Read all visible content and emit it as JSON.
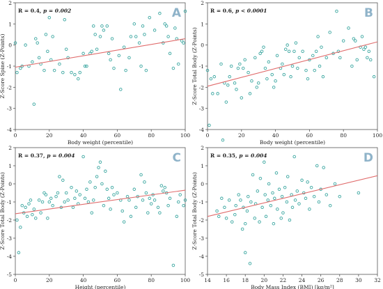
{
  "colors": {
    "points": "#3aa6a0",
    "trend": "#e06b6b",
    "panel_letter": "#8fb3c9",
    "axis": "#555555"
  },
  "chart_data": [
    {
      "type": "scatter",
      "panel_letter": "A",
      "stat_label": "R = 0.4, ",
      "p_label": "p = 0.002",
      "xlabel": "Body weight (percentile)",
      "ylabel": "Z-Score Spine (Z-Points)",
      "xlim": [
        0,
        100
      ],
      "ylim": [
        -4,
        2
      ],
      "xticks": [
        0,
        20,
        40,
        60,
        80,
        100
      ],
      "yticks": [
        2,
        1,
        0,
        -1,
        -2,
        -3,
        -4
      ],
      "trend": [
        [
          0,
          -1.05
        ],
        [
          100,
          0.3
        ]
      ],
      "points": [
        [
          0,
          0.1
        ],
        [
          1,
          -1.3
        ],
        [
          3,
          -1.1
        ],
        [
          4,
          -1.0
        ],
        [
          6,
          0.0
        ],
        [
          8,
          -1.0
        ],
        [
          10,
          -0.8
        ],
        [
          11,
          -2.8
        ],
        [
          12,
          0.3
        ],
        [
          13,
          0.1
        ],
        [
          14,
          -0.6
        ],
        [
          15,
          -0.9
        ],
        [
          17,
          -1.2
        ],
        [
          18,
          0.5
        ],
        [
          19,
          -0.3
        ],
        [
          20,
          1.3
        ],
        [
          21,
          -0.7
        ],
        [
          22,
          0.4
        ],
        [
          23,
          -1.2
        ],
        [
          26,
          -0.9
        ],
        [
          28,
          -1.3
        ],
        [
          29,
          1.2
        ],
        [
          30,
          -0.2
        ],
        [
          31,
          -0.6
        ],
        [
          33,
          -1.3
        ],
        [
          35,
          -1.4
        ],
        [
          37,
          -1.6
        ],
        [
          38,
          -1.3
        ],
        [
          40,
          -0.4
        ],
        [
          41,
          -1.0
        ],
        [
          42,
          -1.0
        ],
        [
          44,
          -0.4
        ],
        [
          45,
          -0.3
        ],
        [
          46,
          0.9
        ],
        [
          47,
          0.5
        ],
        [
          48,
          -0.2
        ],
        [
          50,
          0.4
        ],
        [
          51,
          0.9
        ],
        [
          52,
          0.7
        ],
        [
          54,
          0.9
        ],
        [
          55,
          -0.4
        ],
        [
          56,
          -0.7
        ],
        [
          57,
          0.3
        ],
        [
          58,
          -1.1
        ],
        [
          61,
          -0.5
        ],
        [
          62,
          -2.1
        ],
        [
          64,
          -0.1
        ],
        [
          65,
          -1.2
        ],
        [
          67,
          -0.6
        ],
        [
          68,
          0.4
        ],
        [
          70,
          1.0
        ],
        [
          71,
          0.4
        ],
        [
          73,
          0.1
        ],
        [
          74,
          -1.0
        ],
        [
          75,
          0.9
        ],
        [
          76,
          0.5
        ],
        [
          77,
          -1.2
        ],
        [
          79,
          1.3
        ],
        [
          82,
          0.7
        ],
        [
          85,
          1.5
        ],
        [
          86,
          2.3
        ],
        [
          87,
          0.1
        ],
        [
          88,
          1.0
        ],
        [
          89,
          0.9
        ],
        [
          90,
          0.4
        ],
        [
          91,
          -0.4
        ],
        [
          93,
          -1.1
        ],
        [
          94,
          0.8
        ],
        [
          95,
          0.3
        ],
        [
          96,
          -0.9
        ],
        [
          98,
          0.2
        ],
        [
          99,
          0.1
        ],
        [
          100,
          1.6
        ]
      ]
    },
    {
      "type": "scatter",
      "panel_letter": "B",
      "stat_label": "R = 0.6, ",
      "p_label": "p < 0.0001",
      "xlabel": "Body weight (percentile)",
      "ylabel": "Z-Score Total Body (Z-Points)",
      "xlim": [
        0,
        100
      ],
      "ylim": [
        -4,
        2
      ],
      "xticks": [
        0,
        20,
        40,
        60,
        80,
        100
      ],
      "yticks": [
        2,
        1,
        0,
        -1,
        -2,
        -3,
        -4
      ],
      "trend": [
        [
          0,
          -1.95
        ],
        [
          100,
          0.15
        ]
      ],
      "points": [
        [
          0,
          -1.2
        ],
        [
          1,
          -3.8
        ],
        [
          2,
          -1.6
        ],
        [
          3,
          -2.3
        ],
        [
          4,
          -1.5
        ],
        [
          6,
          -2.3
        ],
        [
          8,
          -0.9
        ],
        [
          9,
          -4.5
        ],
        [
          10,
          -1.8
        ],
        [
          11,
          -2.7
        ],
        [
          12,
          -1.9
        ],
        [
          13,
          -1.5
        ],
        [
          14,
          -1.0
        ],
        [
          16,
          -1.8
        ],
        [
          17,
          -2.1
        ],
        [
          18,
          -1.1
        ],
        [
          19,
          -0.9
        ],
        [
          20,
          -2.5
        ],
        [
          21,
          -1.1
        ],
        [
          22,
          -0.7
        ],
        [
          24,
          -1.3
        ],
        [
          25,
          -2.3
        ],
        [
          26,
          -1.7
        ],
        [
          28,
          -0.6
        ],
        [
          29,
          -2.0
        ],
        [
          30,
          -1.8
        ],
        [
          31,
          -0.4
        ],
        [
          32,
          -0.3
        ],
        [
          33,
          -0.1
        ],
        [
          34,
          -1.1
        ],
        [
          35,
          -1.6
        ],
        [
          36,
          -0.8
        ],
        [
          38,
          -1.4
        ],
        [
          39,
          -2.0
        ],
        [
          40,
          -1.7
        ],
        [
          41,
          -0.5
        ],
        [
          43,
          -1.1
        ],
        [
          44,
          -0.9
        ],
        [
          45,
          -1.4
        ],
        [
          46,
          -0.2
        ],
        [
          47,
          0.0
        ],
        [
          48,
          -0.3
        ],
        [
          49,
          -1.5
        ],
        [
          50,
          -1.0
        ],
        [
          51,
          -0.3
        ],
        [
          52,
          0.1
        ],
        [
          53,
          -1.1
        ],
        [
          54,
          -0.6
        ],
        [
          56,
          -0.3
        ],
        [
          58,
          -1.2
        ],
        [
          59,
          -1.6
        ],
        [
          60,
          -0.7
        ],
        [
          62,
          -0.5
        ],
        [
          63,
          -1.2
        ],
        [
          64,
          -0.3
        ],
        [
          65,
          0.4
        ],
        [
          66,
          -1.0
        ],
        [
          67,
          -0.1
        ],
        [
          68,
          -1.5
        ],
        [
          70,
          -0.6
        ],
        [
          72,
          0.6
        ],
        [
          74,
          -0.4
        ],
        [
          76,
          1.6
        ],
        [
          77,
          -0.3
        ],
        [
          78,
          -0.6
        ],
        [
          80,
          0.2
        ],
        [
          83,
          0.8
        ],
        [
          85,
          -1.0
        ],
        [
          86,
          0.3
        ],
        [
          87,
          0.2
        ],
        [
          88,
          -0.7
        ],
        [
          90,
          -0.1
        ],
        [
          91,
          0.4
        ],
        [
          92,
          -0.2
        ],
        [
          93,
          -0.1
        ],
        [
          94,
          -0.6
        ],
        [
          95,
          -0.3
        ],
        [
          96,
          -0.7
        ],
        [
          98,
          -1.5
        ]
      ]
    },
    {
      "type": "scatter",
      "panel_letter": "C",
      "stat_label": "R = 0.37, ",
      "p_label": "p = 0.004",
      "xlabel": "Height (percentile)",
      "ylabel": "Z-Score Total Body (Z-Points)",
      "xlim": [
        0,
        100
      ],
      "ylim": [
        -5,
        2
      ],
      "xticks": [
        0,
        20,
        40,
        60,
        80,
        100
      ],
      "yticks": [
        2,
        1,
        0,
        -1,
        -2,
        -3,
        -4,
        -5
      ],
      "trend": [
        [
          0,
          -1.65
        ],
        [
          100,
          -0.35
        ]
      ],
      "points": [
        [
          1,
          -2.0
        ],
        [
          2,
          -3.8
        ],
        [
          3,
          -2.4
        ],
        [
          4,
          -1.2
        ],
        [
          5,
          -1.6
        ],
        [
          6,
          -1.3
        ],
        [
          7,
          -1.8
        ],
        [
          8,
          -1.1
        ],
        [
          9,
          -0.9
        ],
        [
          10,
          -1.7
        ],
        [
          11,
          -1.4
        ],
        [
          12,
          -1.9
        ],
        [
          14,
          -0.9
        ],
        [
          15,
          -1.6
        ],
        [
          16,
          -1.0
        ],
        [
          17,
          -0.5
        ],
        [
          18,
          -0.6
        ],
        [
          19,
          -1.9
        ],
        [
          20,
          -1.0
        ],
        [
          21,
          -0.8
        ],
        [
          22,
          -1.2
        ],
        [
          24,
          -0.7
        ],
        [
          25,
          -0.5
        ],
        [
          26,
          0.4
        ],
        [
          27,
          -1.3
        ],
        [
          28,
          0.2
        ],
        [
          29,
          -1.0
        ],
        [
          30,
          -0.5
        ],
        [
          31,
          -0.9
        ],
        [
          33,
          -0.2
        ],
        [
          34,
          -1.3
        ],
        [
          35,
          -0.8
        ],
        [
          36,
          -0.4
        ],
        [
          37,
          -1.1
        ],
        [
          38,
          -0.6
        ],
        [
          40,
          1.5
        ],
        [
          41,
          -0.8
        ],
        [
          42,
          -0.3
        ],
        [
          43,
          -1.0
        ],
        [
          44,
          0.1
        ],
        [
          45,
          -1.6
        ],
        [
          46,
          -0.9
        ],
        [
          47,
          -0.2
        ],
        [
          48,
          0.4
        ],
        [
          49,
          0.9
        ],
        [
          50,
          1.2
        ],
        [
          51,
          0.0
        ],
        [
          52,
          -1.2
        ],
        [
          53,
          0.7
        ],
        [
          54,
          -0.3
        ],
        [
          55,
          -0.8
        ],
        [
          56,
          -1.4
        ],
        [
          57,
          -0.2
        ],
        [
          58,
          -0.6
        ],
        [
          60,
          -0.5
        ],
        [
          62,
          -0.9
        ],
        [
          63,
          -1.5
        ],
        [
          64,
          -2.1
        ],
        [
          66,
          -0.7
        ],
        [
          67,
          -0.9
        ],
        [
          68,
          -1.8
        ],
        [
          70,
          -0.3
        ],
        [
          71,
          -1.3
        ],
        [
          72,
          -0.7
        ],
        [
          74,
          0.5
        ],
        [
          75,
          -0.9
        ],
        [
          76,
          0.1
        ],
        [
          77,
          -0.5
        ],
        [
          78,
          -1.6
        ],
        [
          79,
          -0.8
        ],
        [
          80,
          -1.1
        ],
        [
          81,
          -0.6
        ],
        [
          82,
          -0.9
        ],
        [
          84,
          -1.3
        ],
        [
          85,
          -1.6
        ],
        [
          86,
          -0.1
        ],
        [
          87,
          -0.4
        ],
        [
          88,
          -0.2
        ],
        [
          89,
          -0.5
        ],
        [
          90,
          -1.2
        ],
        [
          91,
          -0.8
        ],
        [
          93,
          -4.5
        ],
        [
          95,
          -1.8
        ],
        [
          96,
          -1.0
        ],
        [
          97,
          -0.6
        ],
        [
          99,
          -1.2
        ],
        [
          100,
          -0.9
        ]
      ]
    },
    {
      "type": "scatter",
      "panel_letter": "D",
      "stat_label": "R = 0.35, ",
      "p_label": "p = 0.004",
      "xlabel": "Body Mass Index (BMI) [kg/m²]",
      "ylabel": "Z-Score Total Body (Z-Points)",
      "xlim": [
        14,
        32
      ],
      "ylim": [
        -5,
        2
      ],
      "xticks": [
        14,
        16,
        18,
        20,
        22,
        24,
        26,
        28,
        30,
        32
      ],
      "yticks": [
        2,
        1,
        0,
        -1,
        -2,
        -3,
        -4,
        -5
      ],
      "trend": [
        [
          14,
          -1.8
        ],
        [
          32,
          0.45
        ]
      ],
      "points": [
        [
          15.0,
          -1.5
        ],
        [
          15.2,
          -1.8
        ],
        [
          15.5,
          -0.8
        ],
        [
          15.8,
          -1.3
        ],
        [
          16.0,
          -1.9
        ],
        [
          16.3,
          -0.9
        ],
        [
          16.6,
          -2.1
        ],
        [
          16.9,
          -1.7
        ],
        [
          17.0,
          -1.2
        ],
        [
          17.3,
          -0.6
        ],
        [
          17.5,
          -0.9
        ],
        [
          17.7,
          -2.5
        ],
        [
          17.8,
          -1.3
        ],
        [
          18.0,
          -3.8
        ],
        [
          18.0,
          -2.2
        ],
        [
          18.2,
          -1.5
        ],
        [
          18.3,
          -0.7
        ],
        [
          18.5,
          -4.4
        ],
        [
          18.6,
          -1.0
        ],
        [
          18.8,
          0.5
        ],
        [
          19.0,
          -1.9
        ],
        [
          19.1,
          -1.1
        ],
        [
          19.3,
          -0.4
        ],
        [
          19.5,
          -2.1
        ],
        [
          19.6,
          0.3
        ],
        [
          19.8,
          -1.3
        ],
        [
          20.0,
          1.2
        ],
        [
          20.1,
          -0.6
        ],
        [
          20.2,
          -1.8
        ],
        [
          20.4,
          -0.9
        ],
        [
          20.5,
          0.0
        ],
        [
          20.7,
          -1.2
        ],
        [
          20.9,
          -0.5
        ],
        [
          21.0,
          -2.2
        ],
        [
          21.1,
          -0.8
        ],
        [
          21.3,
          0.6
        ],
        [
          21.4,
          -1.4
        ],
        [
          21.6,
          -0.3
        ],
        [
          21.8,
          -1.9
        ],
        [
          21.9,
          -0.7
        ],
        [
          22.0,
          -1.6
        ],
        [
          22.2,
          -0.2
        ],
        [
          22.4,
          -1.0
        ],
        [
          22.5,
          0.4
        ],
        [
          22.7,
          -2.0
        ],
        [
          22.9,
          -0.6
        ],
        [
          23.0,
          -1.3
        ],
        [
          23.2,
          1.5
        ],
        [
          23.3,
          -0.9
        ],
        [
          23.5,
          -0.4
        ],
        [
          23.7,
          -1.1
        ],
        [
          24.0,
          0.2
        ],
        [
          24.2,
          -0.5
        ],
        [
          24.4,
          -0.8
        ],
        [
          24.6,
          0.1
        ],
        [
          24.8,
          -1.4
        ],
        [
          25.0,
          -0.2
        ],
        [
          25.3,
          -0.7
        ],
        [
          25.6,
          1.0
        ],
        [
          25.8,
          -1.0
        ],
        [
          26.0,
          -0.3
        ],
        [
          26.3,
          0.9
        ],
        [
          26.6,
          -0.6
        ],
        [
          27.0,
          -1.2
        ],
        [
          27.5,
          0.0
        ],
        [
          28.0,
          -0.7
        ],
        [
          30.0,
          -0.5
        ]
      ]
    }
  ]
}
